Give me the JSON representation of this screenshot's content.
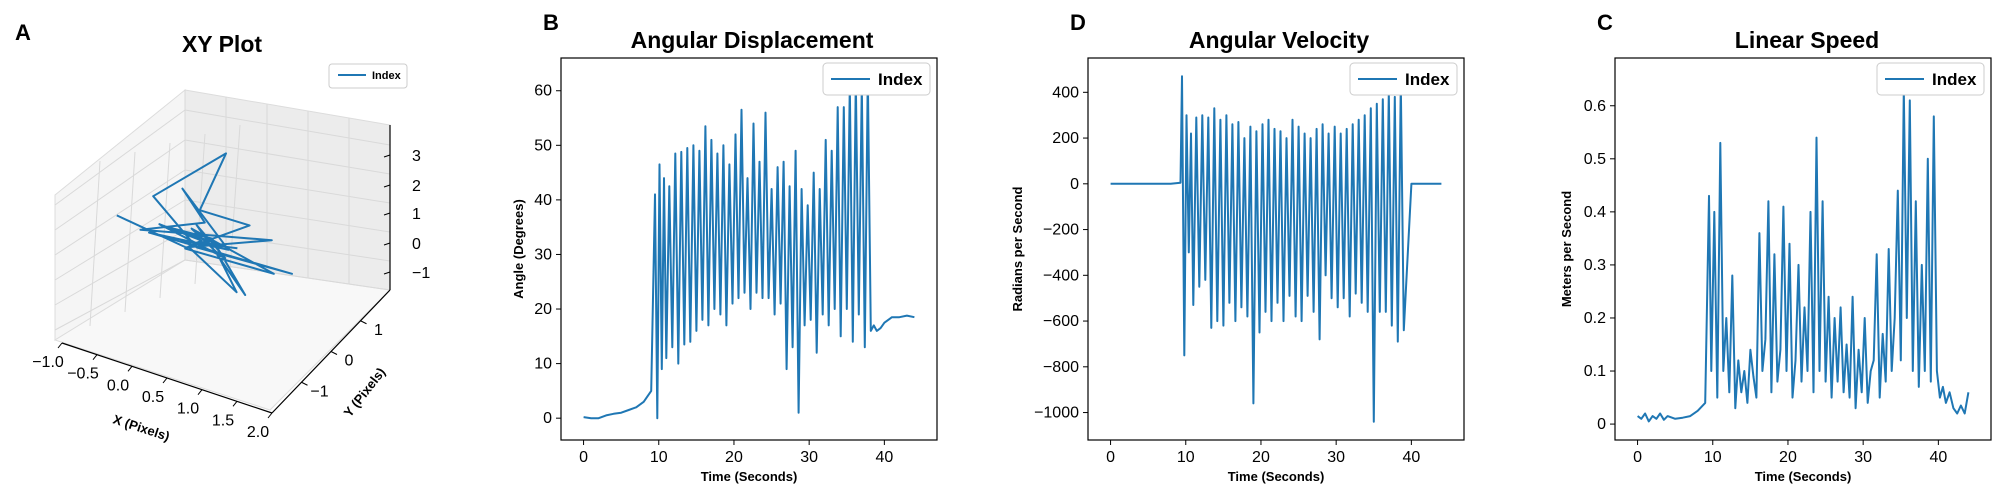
{
  "chart_data": [
    {
      "panel": "A",
      "type": "line",
      "projection": "3d",
      "title": "XY Plot",
      "xlabel": "X (Pixels)",
      "ylabel": "Y (Pixels)",
      "xlim": [
        -1.0,
        2.0
      ],
      "ylim": [
        -2.0,
        2.0
      ],
      "zlim": [
        -1.5,
        3.2
      ],
      "xticks": [
        "−1.0",
        "−0.5",
        "0.0",
        "0.5",
        "1.0",
        "1.5",
        "2.0"
      ],
      "yticks": [
        "−1",
        "0",
        "1"
      ],
      "zticks": [
        "3",
        "2",
        "1",
        "0",
        "−1"
      ],
      "legend": [
        "Index"
      ],
      "legend_position": "upper right",
      "color": "#1f77b4",
      "grid": true,
      "series": [
        {
          "values_xyz": [
            [
              -1.0,
              0.2,
              0.3
            ],
            [
              0.2,
              -0.5,
              0.1
            ],
            [
              1.2,
              0.5,
              0.2
            ],
            [
              -0.6,
              0.0,
              0.1
            ],
            [
              0.4,
              -0.2,
              0.8
            ],
            [
              -0.3,
              1.2,
              0.9
            ],
            [
              0.8,
              -0.4,
              0.2
            ],
            [
              -0.5,
              0.1,
              0.0
            ],
            [
              2.0,
              -1.4,
              0.4
            ],
            [
              0.2,
              0.1,
              -0.2
            ],
            [
              -0.2,
              -0.8,
              1.7
            ],
            [
              0.5,
              0.6,
              2.6
            ],
            [
              0.3,
              -0.1,
              1.1
            ],
            [
              0.9,
              0.4,
              0.6
            ],
            [
              -0.1,
              0.6,
              -0.6
            ],
            [
              1.6,
              -0.9,
              0.0
            ],
            [
              0.1,
              0.2,
              0.3
            ],
            [
              0.6,
              -0.3,
              0.0
            ],
            [
              1.0,
              -0.7,
              -0.9
            ],
            [
              0.0,
              0.4,
              -0.4
            ],
            [
              0.3,
              0.0,
              0.1
            ],
            [
              -0.4,
              0.3,
              0.2
            ],
            [
              0.7,
              -0.2,
              -0.2
            ],
            [
              0.2,
              0.1,
              0.5
            ],
            [
              1.1,
              -0.6,
              -1.0
            ],
            [
              0.4,
              0.2,
              0.1
            ],
            [
              -0.2,
              -0.1,
              0.4
            ],
            [
              0.5,
              0.3,
              -0.1
            ],
            [
              0.1,
              -0.4,
              0.2
            ],
            [
              0.8,
              0.1,
              0.0
            ]
          ]
        }
      ]
    },
    {
      "panel": "B",
      "type": "line",
      "title": "Angular Displacement",
      "xlabel": "Time (Seconds)",
      "ylabel": "Angle (Degrees)",
      "xlim": [
        -3,
        47
      ],
      "ylim": [
        -4,
        66
      ],
      "xticks": [
        0,
        10,
        20,
        30,
        40
      ],
      "yticks": [
        0,
        10,
        20,
        30,
        40,
        50,
        60
      ],
      "legend": [
        "Index"
      ],
      "legend_position": "upper right",
      "color": "#1f77b4",
      "x": [
        0,
        1,
        2,
        3,
        4,
        5,
        6,
        7,
        8,
        9,
        9.5,
        9.8,
        10.1,
        10.4,
        10.7,
        11.0,
        11.4,
        11.8,
        12.2,
        12.6,
        13.0,
        13.4,
        13.8,
        14.2,
        14.6,
        15.0,
        15.4,
        15.8,
        16.2,
        16.6,
        17.0,
        17.4,
        17.8,
        18.2,
        18.6,
        19.0,
        19.4,
        19.8,
        20.2,
        20.6,
        21.0,
        21.4,
        21.8,
        22.2,
        22.6,
        23.0,
        23.4,
        23.8,
        24.2,
        24.6,
        25.0,
        25.4,
        25.8,
        26.2,
        26.6,
        27.0,
        27.4,
        27.8,
        28.2,
        28.6,
        29.0,
        29.4,
        29.8,
        30.2,
        30.6,
        31.0,
        31.4,
        31.8,
        32.2,
        32.6,
        33.0,
        33.4,
        33.8,
        34.2,
        34.6,
        35.0,
        35.4,
        35.8,
        36.2,
        36.6,
        37.0,
        37.4,
        37.8,
        38.2,
        38.6,
        39.0,
        39.5,
        40,
        41,
        42,
        43,
        44
      ],
      "y": [
        0.2,
        0.0,
        0.0,
        0.5,
        0.8,
        1.0,
        1.5,
        2.0,
        3.0,
        5.0,
        41.0,
        0.0,
        46.5,
        9.0,
        44.0,
        11.0,
        42.5,
        13.0,
        48.5,
        10.0,
        48.8,
        13.5,
        49.5,
        14.0,
        50.0,
        16.0,
        49.0,
        18.0,
        53.5,
        17.0,
        51.0,
        20.0,
        48.5,
        19.0,
        50.0,
        17.0,
        46.5,
        21.0,
        52.0,
        22.0,
        56.5,
        23.0,
        44.0,
        20.0,
        54.0,
        23.0,
        47.0,
        22.0,
        56.0,
        22.0,
        42.0,
        19.0,
        46.0,
        21.0,
        47.0,
        9.0,
        42.5,
        13.0,
        49.0,
        1.0,
        42.0,
        17.0,
        39.0,
        18.0,
        45.0,
        12.0,
        42.0,
        19.0,
        51.0,
        17.0,
        49.0,
        20.0,
        57.0,
        15.0,
        57.0,
        20.0,
        61.0,
        14.0,
        62.0,
        19.0,
        61.0,
        13.0,
        63.0,
        16.0,
        17.0,
        16.0,
        16.5,
        17.5,
        18.5,
        18.5,
        18.8,
        18.5
      ]
    },
    {
      "panel": "D",
      "type": "line",
      "title": "Angular Velocity",
      "xlabel": "Time (Seconds)",
      "ylabel": "Radians per Second",
      "xlim": [
        -3,
        47
      ],
      "ylim": [
        -1120,
        550
      ],
      "xticks": [
        0,
        10,
        20,
        30,
        40
      ],
      "yticks": [
        400,
        200,
        0,
        -200,
        -400,
        -600,
        -800,
        -1000
      ],
      "ytick_labels": [
        "400",
        "200",
        "0",
        "−200",
        "−400",
        "−600",
        "−800",
        "−1000"
      ],
      "legend": [
        "Index"
      ],
      "legend_position": "upper right",
      "color": "#1f77b4",
      "x": [
        0,
        2,
        4,
        6,
        8,
        9.3,
        9.5,
        9.8,
        10.1,
        10.4,
        10.7,
        11.0,
        11.4,
        11.8,
        12.2,
        12.6,
        13.0,
        13.4,
        13.8,
        14.2,
        14.6,
        15.0,
        15.4,
        15.8,
        16.2,
        16.6,
        17.0,
        17.4,
        17.8,
        18.2,
        18.6,
        19.0,
        19.4,
        19.8,
        20.2,
        20.6,
        21.0,
        21.4,
        21.8,
        22.2,
        22.6,
        23.0,
        23.4,
        23.8,
        24.2,
        24.6,
        25.0,
        25.4,
        25.8,
        26.2,
        26.6,
        27.0,
        27.4,
        27.8,
        28.2,
        28.6,
        29.0,
        29.4,
        29.8,
        30.2,
        30.6,
        31.0,
        31.4,
        31.8,
        32.2,
        32.6,
        33.0,
        33.4,
        33.8,
        34.2,
        34.6,
        35.0,
        35.4,
        35.8,
        36.2,
        36.6,
        37.0,
        37.4,
        37.8,
        38.2,
        38.6,
        39.0,
        40,
        42,
        44
      ],
      "y": [
        0,
        0,
        0,
        0,
        0,
        5,
        470,
        -750,
        300,
        -300,
        220,
        -530,
        290,
        -450,
        300,
        -420,
        290,
        -630,
        330,
        -600,
        280,
        -620,
        300,
        -520,
        260,
        -600,
        270,
        -540,
        200,
        -580,
        250,
        -960,
        230,
        -650,
        260,
        -560,
        280,
        -600,
        240,
        -520,
        230,
        -600,
        200,
        -490,
        280,
        -580,
        250,
        -600,
        220,
        -490,
        200,
        -560,
        240,
        -680,
        260,
        -400,
        220,
        -500,
        250,
        -540,
        220,
        -500,
        240,
        -580,
        260,
        -480,
        280,
        -520,
        300,
        -560,
        330,
        -1040,
        350,
        -560,
        370,
        -560,
        400,
        -620,
        380,
        -690,
        440,
        -640,
        0,
        0,
        0
      ]
    },
    {
      "panel": "C",
      "type": "line",
      "title": "Linear Speed",
      "xlabel": "Time (Seconds)",
      "ylabel": "Meters per Second",
      "xlim": [
        -3,
        47
      ],
      "ylim": [
        -0.03,
        0.69
      ],
      "xticks": [
        0,
        10,
        20,
        30,
        40
      ],
      "yticks": [
        0.0,
        0.1,
        0.2,
        0.3,
        0.4,
        0.5,
        0.6
      ],
      "legend": [
        "Index"
      ],
      "legend_position": "upper right",
      "color": "#1f77b4",
      "x": [
        0,
        0.5,
        1,
        1.5,
        2,
        2.5,
        3,
        3.5,
        4,
        5,
        6,
        7,
        8,
        9,
        9.5,
        9.8,
        10.2,
        10.6,
        11.0,
        11.4,
        11.8,
        12.2,
        12.6,
        13.0,
        13.4,
        13.8,
        14.2,
        14.6,
        15.0,
        15.4,
        15.8,
        16.2,
        16.6,
        17.0,
        17.4,
        17.8,
        18.2,
        18.6,
        19.0,
        19.4,
        19.8,
        20.2,
        20.6,
        21.0,
        21.4,
        21.8,
        22.2,
        22.6,
        23.0,
        23.4,
        23.8,
        24.2,
        24.6,
        25.0,
        25.4,
        25.8,
        26.2,
        26.6,
        27.0,
        27.4,
        27.8,
        28.2,
        28.6,
        29.0,
        29.4,
        29.8,
        30.2,
        30.6,
        31.0,
        31.4,
        31.8,
        32.2,
        32.6,
        33.0,
        33.4,
        33.8,
        34.2,
        34.6,
        35.0,
        35.4,
        35.8,
        36.2,
        36.6,
        37.0,
        37.4,
        37.8,
        38.2,
        38.6,
        39.0,
        39.4,
        39.8,
        40.2,
        40.6,
        41.0,
        41.5,
        42.0,
        42.5,
        43.0,
        43.5,
        44.0
      ],
      "y": [
        0.015,
        0.01,
        0.02,
        0.005,
        0.015,
        0.01,
        0.02,
        0.008,
        0.015,
        0.01,
        0.012,
        0.015,
        0.025,
        0.04,
        0.43,
        0.1,
        0.4,
        0.05,
        0.53,
        0.1,
        0.2,
        0.06,
        0.28,
        0.03,
        0.12,
        0.06,
        0.1,
        0.04,
        0.14,
        0.09,
        0.05,
        0.36,
        0.1,
        0.16,
        0.42,
        0.06,
        0.32,
        0.08,
        0.14,
        0.41,
        0.1,
        0.34,
        0.05,
        0.12,
        0.3,
        0.08,
        0.22,
        0.1,
        0.4,
        0.06,
        0.54,
        0.1,
        0.42,
        0.08,
        0.24,
        0.05,
        0.2,
        0.08,
        0.22,
        0.06,
        0.15,
        0.05,
        0.24,
        0.03,
        0.14,
        0.06,
        0.2,
        0.04,
        0.1,
        0.12,
        0.32,
        0.05,
        0.17,
        0.08,
        0.33,
        0.1,
        0.2,
        0.44,
        0.12,
        0.63,
        0.2,
        0.61,
        0.1,
        0.42,
        0.07,
        0.3,
        0.1,
        0.5,
        0.08,
        0.58,
        0.1,
        0.05,
        0.07,
        0.04,
        0.06,
        0.03,
        0.02,
        0.035,
        0.02,
        0.06
      ]
    }
  ]
}
